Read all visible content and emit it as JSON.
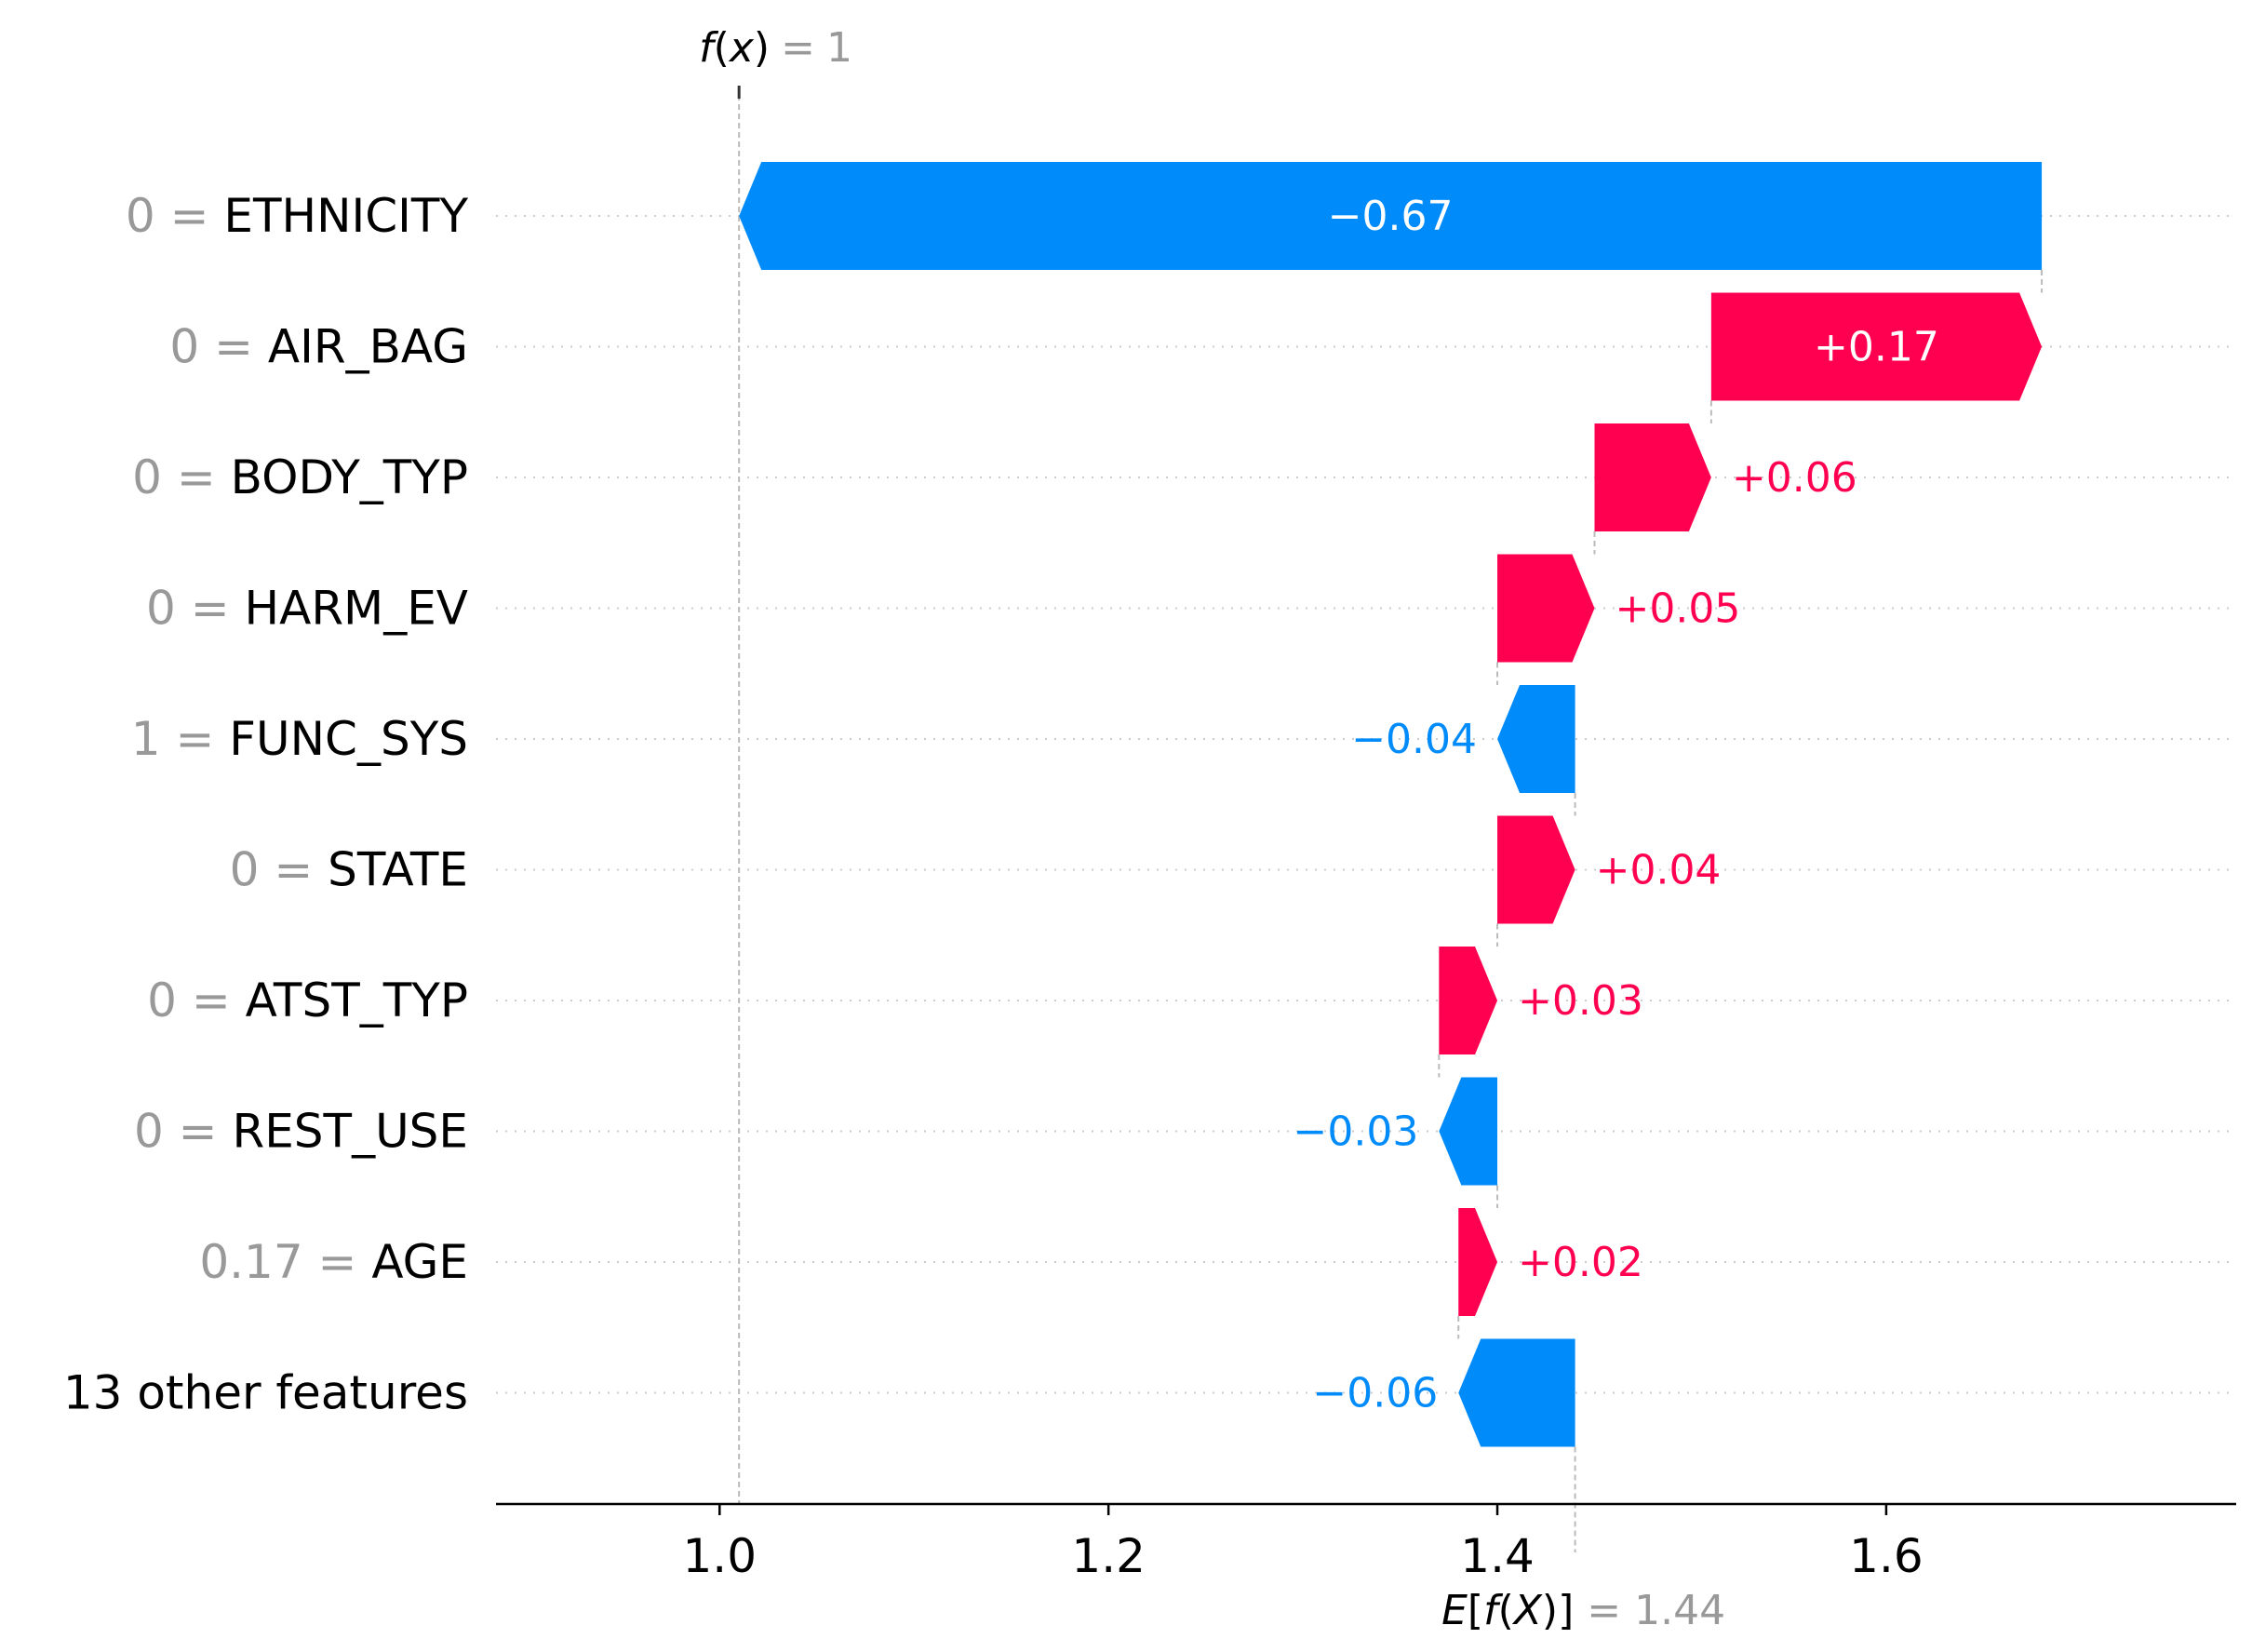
{
  "chart_data": {
    "type": "waterfall",
    "fx": {
      "label_f": "f",
      "label_x": "x",
      "value": "1"
    },
    "expected": {
      "label_e": "E",
      "label_f": "f",
      "label_x": "X",
      "value": "1.44"
    },
    "base_value": 1.44,
    "xlim": [
      0.885,
      1.78
    ],
    "xticks": [
      1.0,
      1.2,
      1.4,
      1.6
    ],
    "xtick_labels": [
      "1.0",
      "1.2",
      "1.4",
      "1.6"
    ],
    "grid": "dotted row lines",
    "features": [
      {
        "value": "0",
        "name": "ETHNICITY",
        "contribution": -0.67,
        "label": "−0.67"
      },
      {
        "value": "0",
        "name": "AIR_BAG",
        "contribution": 0.17,
        "label": "+0.17"
      },
      {
        "value": "0",
        "name": "BODY_TYP",
        "contribution": 0.06,
        "label": "+0.06"
      },
      {
        "value": "0",
        "name": "HARM_EV",
        "contribution": 0.05,
        "label": "+0.05"
      },
      {
        "value": "1",
        "name": "FUNC_SYS",
        "contribution": -0.04,
        "label": "−0.04"
      },
      {
        "value": "0",
        "name": "STATE",
        "contribution": 0.04,
        "label": "+0.04"
      },
      {
        "value": "0",
        "name": "ATST_TYP",
        "contribution": 0.03,
        "label": "+0.03"
      },
      {
        "value": "0",
        "name": "REST_USE",
        "contribution": -0.03,
        "label": "−0.03"
      },
      {
        "value": "0.17",
        "name": "AGE",
        "contribution": 0.02,
        "label": "+0.02"
      },
      {
        "value": "",
        "name": "13 other features",
        "contribution": -0.06,
        "label": "−0.06"
      }
    ],
    "colors": {
      "positive": "#ff0051",
      "negative": "#008bfb",
      "muted": "#999999"
    }
  }
}
